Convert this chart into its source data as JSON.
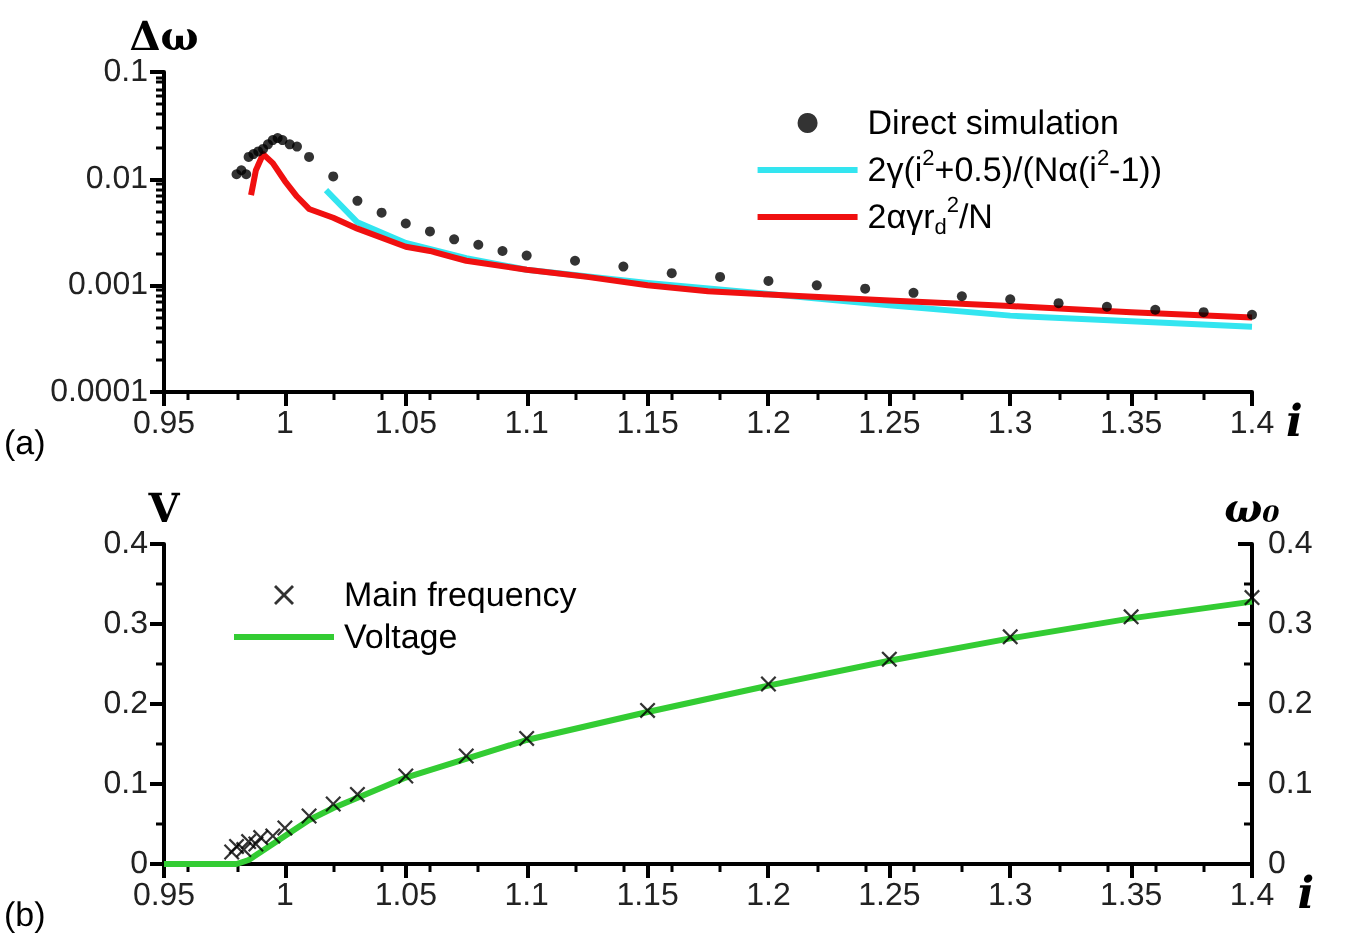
{
  "chart_data": [
    {
      "type": "line",
      "ylabel": "Δω",
      "xlabel": "i",
      "annotations": [
        "(a)"
      ],
      "log": "y",
      "xlim": [
        0.95,
        1.4
      ],
      "xticks": [
        0.95,
        1,
        1.05,
        1.1,
        1.15,
        1.2,
        1.25,
        1.3,
        1.35,
        1.4
      ],
      "ylim": [
        0.0001,
        0.1
      ],
      "yticks": [
        0.0001,
        0.001,
        0.01,
        0.1
      ],
      "legend": "top right",
      "grid": false,
      "series": [
        {
          "name": "Direct simulation",
          "type": "scatter",
          "marker": "circle",
          "color": "#000000",
          "x": [
            0.98,
            0.982,
            0.984,
            0.985,
            0.987,
            0.989,
            0.991,
            0.993,
            0.995,
            0.997,
            0.999,
            1.002,
            1.005,
            1.01,
            1.02,
            1.03,
            1.04,
            1.05,
            1.06,
            1.07,
            1.08,
            1.09,
            1.1,
            1.12,
            1.14,
            1.16,
            1.18,
            1.2,
            1.22,
            1.24,
            1.26,
            1.28,
            1.3,
            1.32,
            1.34,
            1.36,
            1.38,
            1.4
          ],
          "values": [
            0.011,
            0.012,
            0.011,
            0.016,
            0.017,
            0.018,
            0.019,
            0.021,
            0.023,
            0.024,
            0.023,
            0.021,
            0.02,
            0.016,
            0.0105,
            0.0062,
            0.0048,
            0.0038,
            0.0032,
            0.0027,
            0.0024,
            0.0021,
            0.0019,
            0.0017,
            0.0015,
            0.0013,
            0.0012,
            0.0011,
            0.001,
            0.00093,
            0.00085,
            0.00079,
            0.00074,
            0.00068,
            0.00063,
            0.00059,
            0.00056,
            0.00053
          ]
        },
        {
          "name": "2γ(i$^{2}$+0.5)/(Nα(i$^{2}$-1))",
          "marker": "none",
          "color": "#33e5f0",
          "x": [
            1.017,
            1.03,
            1.05,
            1.075,
            1.1,
            1.15,
            1.2,
            1.25,
            1.3,
            1.35,
            1.4
          ],
          "values": [
            0.0078,
            0.0039,
            0.0025,
            0.0018,
            0.0014,
            0.00105,
            0.00083,
            0.00065,
            0.00052,
            0.00046,
            0.00041
          ]
        },
        {
          "name": "2αγr$_{d}$$^{2}$/N",
          "marker": "none",
          "color": "#f01010",
          "x": [
            0.986,
            0.988,
            0.991,
            0.995,
            1,
            1.005,
            1.01,
            1.02,
            1.03,
            1.05,
            1.06,
            1.075,
            1.1,
            1.125,
            1.15,
            1.175,
            1.2,
            1.25,
            1.3,
            1.35,
            1.4
          ],
          "values": [
            0.007,
            0.012,
            0.017,
            0.014,
            0.0095,
            0.0068,
            0.0052,
            0.0043,
            0.0034,
            0.0023,
            0.0021,
            0.0017,
            0.0014,
            0.0012,
            0.001,
            0.00088,
            0.00082,
            0.00072,
            0.00064,
            0.00056,
            0.0005
          ]
        }
      ]
    },
    {
      "type": "line",
      "ylabel": "V",
      "y2label": "ω₀",
      "xlabel": "i",
      "annotations": [
        "(b)"
      ],
      "xlim": [
        0.95,
        1.4
      ],
      "xticks": [
        0.95,
        1,
        1.05,
        1.1,
        1.15,
        1.2,
        1.25,
        1.3,
        1.35,
        1.4
      ],
      "ylim": [
        0,
        0.4
      ],
      "yticks": [
        0,
        0.1,
        0.2,
        0.3,
        0.4
      ],
      "y2lim": [
        0,
        0.4
      ],
      "y2ticks": [
        0,
        0.1,
        0.2,
        0.3,
        0.4
      ],
      "legend": "top left",
      "grid": false,
      "series": [
        {
          "name": "Main frequency",
          "type": "scatter",
          "marker": "cross",
          "color": "#000000",
          "x": [
            0.978,
            0.98,
            0.983,
            0.985,
            0.988,
            0.99,
            0.995,
            1,
            1.01,
            1.02,
            1.03,
            1.05,
            1.075,
            1.1,
            1.15,
            1.2,
            1.25,
            1.3,
            1.35,
            1.4
          ],
          "values": [
            0.015,
            0.022,
            0.018,
            0.028,
            0.025,
            0.033,
            0.035,
            0.045,
            0.06,
            0.075,
            0.087,
            0.11,
            0.135,
            0.157,
            0.192,
            0.225,
            0.256,
            0.284,
            0.309,
            0.333
          ]
        },
        {
          "name": "Voltage",
          "marker": "none",
          "color": "#33cc33",
          "x": [
            0.95,
            0.98,
            0.985,
            0.99,
            1,
            1.01,
            1.02,
            1.05,
            1.1,
            1.15,
            1.2,
            1.25,
            1.3,
            1.35,
            1.4
          ],
          "values": [
            0,
            0,
            0.005,
            0.015,
            0.035,
            0.055,
            0.07,
            0.108,
            0.155,
            0.19,
            0.223,
            0.254,
            0.282,
            0.307,
            0.328
          ]
        }
      ]
    }
  ]
}
